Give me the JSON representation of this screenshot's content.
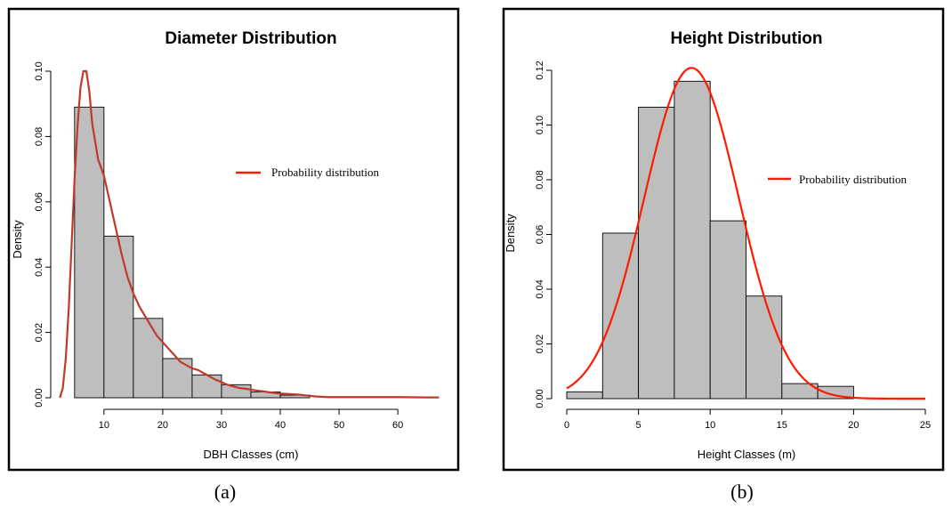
{
  "chart_data": [
    {
      "type": "bar",
      "panel_caption": "(a)",
      "title": "Diameter Distribution",
      "xlabel": "DBH Classes (cm)",
      "ylabel": "Density",
      "xlim": [
        2,
        68
      ],
      "ylim": [
        0,
        0.1
      ],
      "xticks": [
        10,
        20,
        30,
        40,
        50,
        60
      ],
      "yticks": [
        0.0,
        0.02,
        0.04,
        0.06,
        0.08,
        0.1
      ],
      "ytick_labels": [
        "0.00",
        "0.02",
        "0.04",
        "0.06",
        "0.08",
        "0.10"
      ],
      "bins": [
        {
          "x0": 5,
          "x1": 10,
          "value": 0.089
        },
        {
          "x0": 10,
          "x1": 15,
          "value": 0.0495
        },
        {
          "x0": 15,
          "x1": 20,
          "value": 0.0243
        },
        {
          "x0": 20,
          "x1": 25,
          "value": 0.012
        },
        {
          "x0": 25,
          "x1": 30,
          "value": 0.007
        },
        {
          "x0": 30,
          "x1": 35,
          "value": 0.004
        },
        {
          "x0": 35,
          "x1": 40,
          "value": 0.0018
        },
        {
          "x0": 40,
          "x1": 45,
          "value": 0.0008
        }
      ],
      "bar_color": "#bebebe",
      "curve": {
        "name": "Probability distribution",
        "color": "#c0392b",
        "x": [
          2.5,
          3,
          3.5,
          4,
          4.5,
          5,
          5.5,
          6,
          6.5,
          7,
          7.5,
          8,
          9,
          10,
          11,
          12,
          13,
          14,
          15,
          16,
          17,
          18,
          19,
          20,
          21,
          22,
          23,
          24,
          25,
          26,
          27,
          28,
          29,
          30,
          31,
          32,
          33,
          34,
          35,
          36,
          37,
          38,
          39,
          40,
          41,
          42,
          43,
          44,
          45,
          46,
          47,
          48,
          50,
          55,
          60,
          65,
          67
        ],
        "y": [
          0.0,
          0.003,
          0.012,
          0.027,
          0.047,
          0.067,
          0.083,
          0.095,
          0.1,
          0.1,
          0.094,
          0.084,
          0.073,
          0.068,
          0.06,
          0.052,
          0.044,
          0.037,
          0.032,
          0.028,
          0.025,
          0.022,
          0.019,
          0.017,
          0.015,
          0.013,
          0.011,
          0.01,
          0.009,
          0.0085,
          0.0075,
          0.0065,
          0.0055,
          0.0048,
          0.004,
          0.0035,
          0.003,
          0.0028,
          0.0025,
          0.0022,
          0.002,
          0.0017,
          0.0015,
          0.0013,
          0.0012,
          0.0011,
          0.001,
          0.0008,
          0.0006,
          0.0004,
          0.0003,
          0.0002,
          0.0002,
          0.0002,
          0.0002,
          0.0001,
          0.0001
        ]
      },
      "legend": [
        "Probability distribution"
      ],
      "legend_position": "right",
      "grid": false
    },
    {
      "type": "bar",
      "panel_caption": "(b)",
      "title": "Height Distribution",
      "xlabel": "Height Classes (m)",
      "ylabel": "Density",
      "xlim": [
        0,
        25
      ],
      "ylim": [
        0,
        0.12
      ],
      "xticks": [
        0,
        5,
        10,
        15,
        20,
        25
      ],
      "yticks": [
        0.0,
        0.02,
        0.04,
        0.06,
        0.08,
        0.1,
        0.12
      ],
      "ytick_labels": [
        "0.00",
        "0.02",
        "0.04",
        "0.06",
        "0.08",
        "0.10",
        "0.12"
      ],
      "bins": [
        {
          "x0": 0,
          "x1": 2.5,
          "value": 0.0025
        },
        {
          "x0": 2.5,
          "x1": 5,
          "value": 0.0605
        },
        {
          "x0": 5,
          "x1": 7.5,
          "value": 0.1065
        },
        {
          "x0": 7.5,
          "x1": 10,
          "value": 0.116
        },
        {
          "x0": 10,
          "x1": 12.5,
          "value": 0.065
        },
        {
          "x0": 12.5,
          "x1": 15,
          "value": 0.0375
        },
        {
          "x0": 15,
          "x1": 17.5,
          "value": 0.0055
        },
        {
          "x0": 17.5,
          "x1": 20,
          "value": 0.0045
        }
      ],
      "bar_color": "#bebebe",
      "curve": {
        "name": "Probability distribution",
        "color": "#ff1a00",
        "distribution": "normal",
        "mean": 8.7,
        "sd": 3.3,
        "x_range": [
          0,
          25
        ]
      },
      "legend": [
        "Probability distribution"
      ],
      "legend_position": "right",
      "grid": false
    }
  ]
}
